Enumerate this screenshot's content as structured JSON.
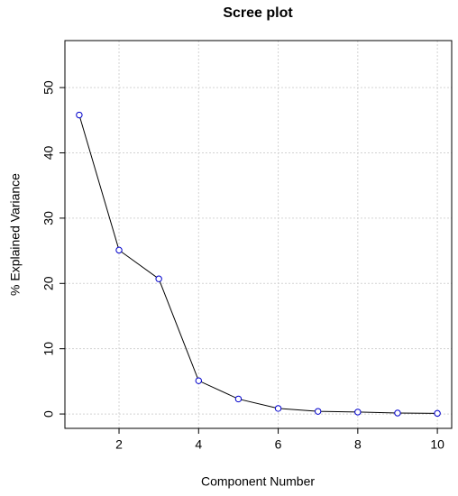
{
  "chart_data": {
    "type": "line",
    "title": "Scree plot",
    "x_label": "Component Number",
    "y_label": "% Explained Variance",
    "x": [
      1,
      2,
      3,
      4,
      5,
      6,
      7,
      8,
      9,
      10
    ],
    "values": [
      45.8,
      25.1,
      20.7,
      5.1,
      2.3,
      0.85,
      0.4,
      0.3,
      0.15,
      0.1
    ],
    "line_color": "#000000",
    "marker_color": "#0000cc",
    "xlim": [
      0.64,
      10.36
    ],
    "xticks": [
      2,
      4,
      6,
      8,
      10
    ],
    "ylim": [
      -2.2,
      57.2
    ],
    "yticks": [
      0,
      10,
      20,
      30,
      40,
      50
    ],
    "grid": true
  }
}
